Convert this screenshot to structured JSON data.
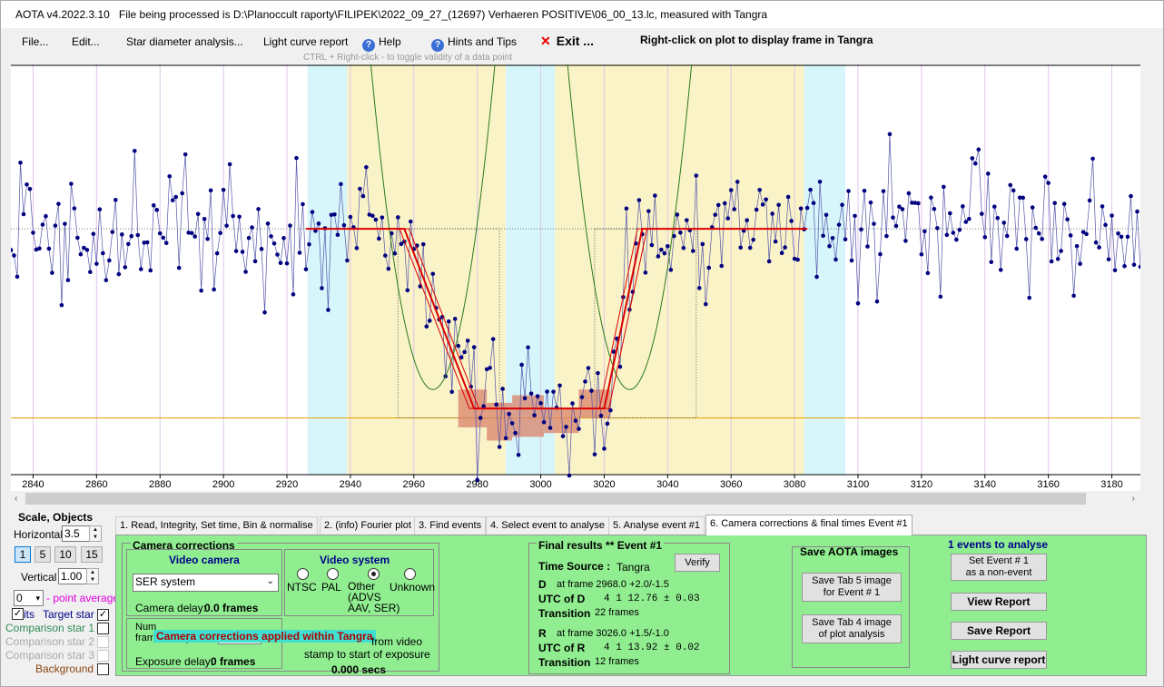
{
  "title_bar": {
    "app": "AOTA v4.2022.3.10",
    "file_text": "File being processed is D:\\Planoccult raporty\\FILIPEK\\2022_09_27_(12697) Verhaeren POSITIVE\\06_00_13.lc, measured with Tangra"
  },
  "menu": {
    "file": "File...",
    "edit": "Edit...",
    "star_diameter": "Star diameter analysis...",
    "light_curve_report": "Light curve report",
    "help": "Help",
    "hints": "Hints and Tips",
    "exit": "Exit ...",
    "right_click_hint": "Right-click on plot to display frame in Tangra",
    "ctrl_hint": "CTRL + Right-click  -  to toggle validity of a data point"
  },
  "chart_data": {
    "type": "scatter",
    "x_ticks": [
      "2840",
      "2860",
      "2880",
      "2900",
      "2920",
      "2940",
      "2960",
      "2980",
      "3000",
      "3020",
      "3040",
      "3060",
      "3080",
      "3100",
      "3120",
      "3140",
      "3160",
      "3180"
    ],
    "xlim": [
      2833,
      3189
    ],
    "ylim": [
      -0.3,
      1.85
    ],
    "grid": "vertical",
    "baseline_level": 1.0,
    "bottom_level": 0.05,
    "d_frame": 2968.0,
    "r_frame": 3026.0,
    "seed": 12697,
    "series": [
      {
        "values": [],
        "color": "#1f1f8f"
      }
    ],
    "colors": {
      "points": "#00007f",
      "line": "#5555aa",
      "model": "#dd0000",
      "parabola": "#2a7a1a",
      "zero_line": "#e8a000",
      "yellow_band": "#faf3c8",
      "cyan_band": "#d6f6fb",
      "bins": "#d9826a"
    }
  },
  "scroll": {
    "left_arrow": "‹",
    "right_arrow": "›"
  },
  "left_panel": {
    "scale_objects": "Scale,  Objects",
    "horizontal_label": "Horizontal",
    "horizontal_value": "3.5",
    "zoom_buttons": [
      "1",
      "5",
      "10",
      "15"
    ],
    "vertical_label": "Vertical",
    "vertical_value": "1.00",
    "avg_value": "0",
    "avg_label": "- point average",
    "target_prefix": "its",
    "target_star": "Target star",
    "comparison1": "Comparison star 1",
    "comparison2": "Comparison star 2",
    "comparison3": "Comparison star 3",
    "background": "Background"
  },
  "tabs": [
    "1.  Read, Integrity, Set time, Bin & normalise",
    "2. (info)  Fourier plot",
    "3. Find events",
    "4. Select event to analyse",
    "5. Analyse event #1",
    "6. Camera corrections & final times Event #1"
  ],
  "camera": {
    "group_title": "Camera corrections",
    "video_camera_title": "Video camera",
    "camera_select": "SER system",
    "camera_delay_label": "Camera delay:",
    "camera_delay_value": "0.0 frames",
    "video_system_title": "Video system",
    "radios": [
      "NTSC",
      "PAL",
      "Other\n(ADVS\nAAV, SER)",
      "Unknown"
    ],
    "selected_radio": "Other",
    "frames_integrated_prefix": "Num",
    "frames_integrated_label": "frames integrated",
    "overlay_text": "Camera corrections applied within Tangra",
    "from_video": "from video",
    "stamp_text": "stamp to start of exposure",
    "secs_value": "0.000 secs",
    "exposure_delay_label": "Exposure delay:",
    "exposure_delay_value": "0 frames"
  },
  "final": {
    "title": "Final results  **  Event #1",
    "time_source_label": "Time Source :",
    "time_source_value": "Tangra",
    "verify_button": "Verify",
    "d_label": "D",
    "d_frame": "at frame 2968.0  +2.0/-1.5",
    "utc_d_label": "UTC of D",
    "utc_d_value": "4   1 12.76  ± 0.03",
    "transition_label": "Transition",
    "d_transition": "22 frames",
    "r_label": "R",
    "r_frame": "at frame 3026.0  +1.5/-1.0",
    "utc_r_label": "UTC of R",
    "utc_r_value": "4   1 13.92  ± 0.02",
    "r_transition": "12 frames"
  },
  "save": {
    "title": "Save AOTA images",
    "tab5_button": "Save Tab 5 image\nfor Event # 1",
    "tab4_button": "Save Tab 4 image\nof plot analysis"
  },
  "right": {
    "events_label": "1  events to analyse",
    "set_event_button": "Set Event # 1\nas a non-event",
    "view_report": "View Report",
    "save_report": "Save Report",
    "light_curve_report": "Light curve report"
  }
}
